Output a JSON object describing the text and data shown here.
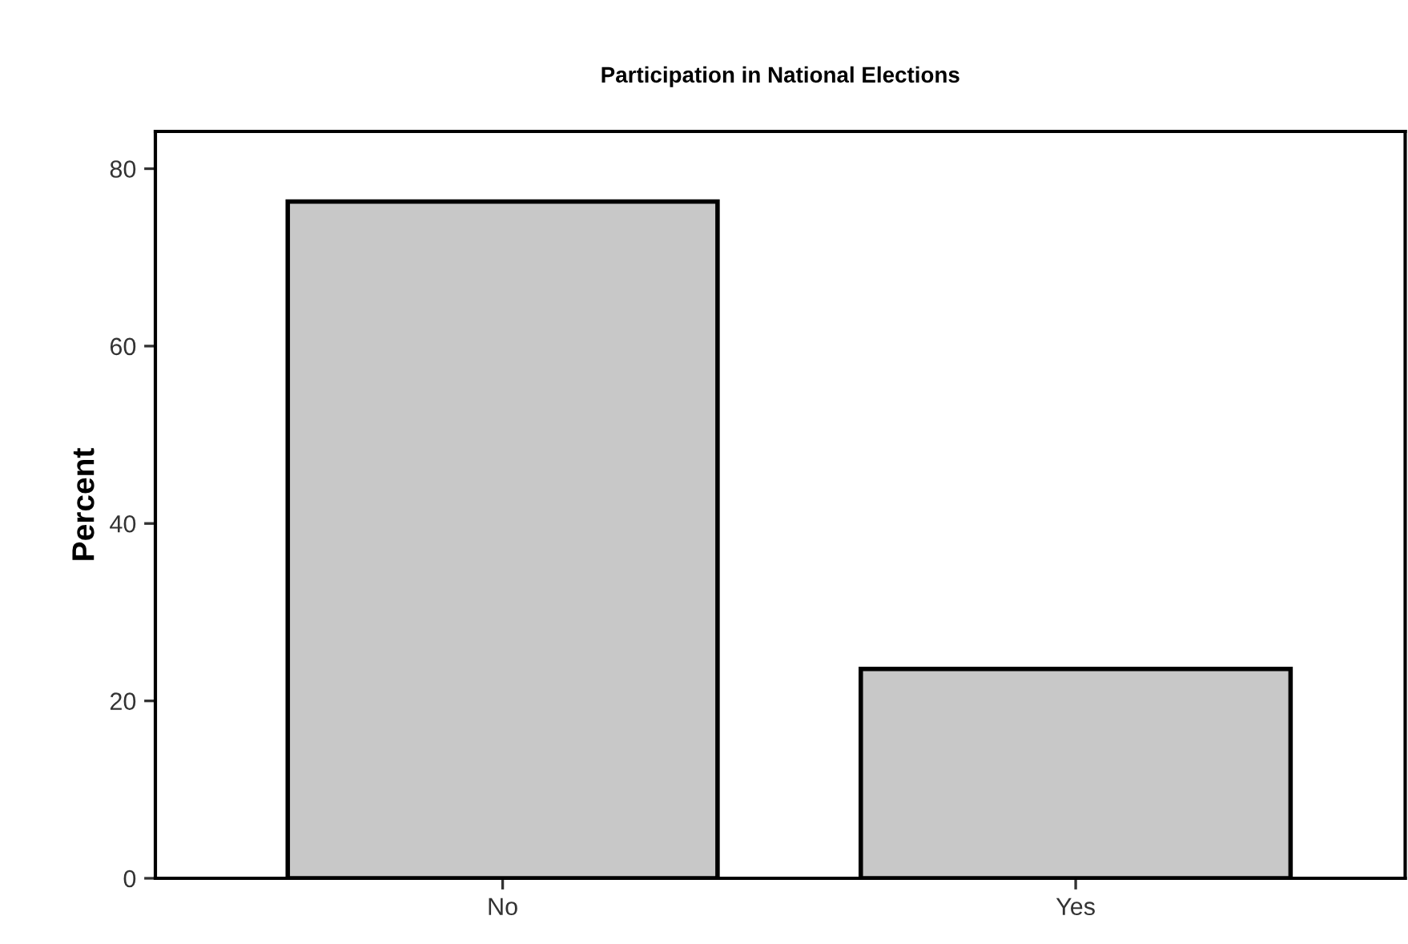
{
  "chart_data": {
    "type": "bar",
    "title": "Participation in National Elections",
    "ylabel": "Percent",
    "categories": [
      "No",
      "Yes"
    ],
    "values": [
      76.3,
      23.6
    ],
    "color": "#c8c8c8",
    "ylim": [
      0,
      84.2
    ],
    "yticks": [
      0,
      20,
      40,
      60,
      80
    ],
    "grid": false,
    "legend": false
  }
}
